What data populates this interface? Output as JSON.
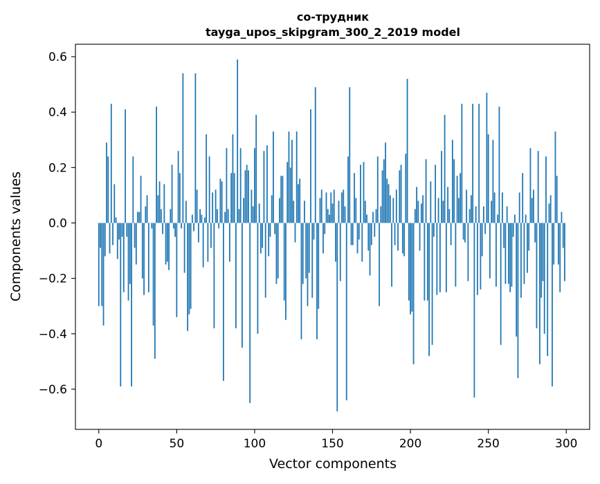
{
  "chart_data": {
    "type": "bar",
    "title": "со-трудник",
    "subtitle": "tayga_upos_skipgram_300_2_2019 model",
    "xlabel": "Vector components",
    "ylabel": "Components values",
    "xlim": [
      -15,
      315
    ],
    "ylim": [
      -0.745,
      0.645
    ],
    "xticks": [
      0,
      50,
      100,
      150,
      200,
      250,
      300
    ],
    "yticks": [
      -0.6,
      -0.4,
      -0.2,
      0.0,
      0.2,
      0.4,
      0.6
    ],
    "ytick_labels": [
      "−0.6",
      "−0.4",
      "−0.2",
      "0.0",
      "0.2",
      "0.4",
      "0.6"
    ],
    "bar_color": "#1f77b4",
    "grid": false,
    "legend": "none",
    "values": [
      -0.3,
      -0.09,
      -0.3,
      -0.37,
      -0.12,
      0.29,
      0.24,
      -0.11,
      0.43,
      -0.08,
      0.14,
      0.02,
      -0.13,
      -0.06,
      -0.59,
      -0.05,
      -0.25,
      0.41,
      -0.05,
      -0.28,
      -0.22,
      -0.59,
      0.24,
      -0.09,
      -0.15,
      0.04,
      0.04,
      0.17,
      -0.2,
      -0.26,
      0.06,
      0.1,
      -0.25,
      0.0,
      -0.02,
      -0.37,
      -0.49,
      0.42,
      0.1,
      0.15,
      0.05,
      -0.04,
      0.14,
      -0.15,
      -0.14,
      -0.17,
      0.05,
      0.21,
      -0.02,
      -0.05,
      -0.34,
      0.26,
      0.18,
      -0.02,
      0.54,
      -0.18,
      0.08,
      -0.39,
      -0.33,
      -0.31,
      0.03,
      -0.03,
      0.54,
      0.12,
      -0.07,
      0.05,
      0.03,
      -0.16,
      0.02,
      0.32,
      -0.14,
      0.24,
      -0.09,
      0.11,
      -0.38,
      0.12,
      0.05,
      -0.02,
      0.16,
      0.15,
      -0.57,
      0.04,
      0.27,
      0.05,
      -0.14,
      0.18,
      0.32,
      0.18,
      -0.38,
      0.59,
      0.05,
      0.27,
      -0.45,
      0.09,
      0.19,
      0.21,
      0.19,
      -0.65,
      0.12,
      0.06,
      0.27,
      0.39,
      -0.4,
      0.07,
      -0.11,
      -0.09,
      0.26,
      -0.27,
      0.28,
      -0.12,
      -0.05,
      0.1,
      0.33,
      -0.04,
      -0.22,
      -0.2,
      0.09,
      0.17,
      0.17,
      -0.28,
      -0.35,
      0.22,
      0.33,
      0.2,
      0.3,
      0.08,
      -0.07,
      0.33,
      0.14,
      0.16,
      -0.42,
      -0.22,
      0.08,
      -0.2,
      -0.3,
      -0.18,
      0.41,
      -0.27,
      -0.06,
      0.49,
      -0.42,
      -0.31,
      0.09,
      0.12,
      -0.11,
      -0.04,
      0.11,
      0.05,
      0.03,
      0.11,
      0.07,
      0.12,
      -0.14,
      -0.68,
      0.08,
      -0.21,
      0.11,
      0.12,
      0.06,
      -0.64,
      0.24,
      0.49,
      -0.08,
      -0.08,
      0.18,
      0.09,
      -0.11,
      -0.06,
      0.21,
      -0.14,
      0.22,
      0.08,
      0.03,
      -0.1,
      -0.19,
      -0.08,
      0.04,
      -0.05,
      0.05,
      0.24,
      -0.3,
      0.06,
      0.19,
      0.23,
      0.29,
      0.16,
      0.14,
      0.1,
      -0.23,
      0.09,
      -0.08,
      0.12,
      -0.1,
      0.19,
      0.21,
      -0.11,
      -0.12,
      0.25,
      0.52,
      -0.28,
      -0.33,
      -0.32,
      -0.51,
      0.05,
      0.13,
      0.08,
      -0.1,
      0.07,
      0.1,
      -0.28,
      0.23,
      -0.28,
      -0.48,
      0.15,
      -0.44,
      -0.05,
      0.21,
      -0.26,
      0.09,
      -0.25,
      0.26,
      0.08,
      0.39,
      -0.25,
      0.13,
      0.05,
      -0.08,
      0.3,
      0.23,
      -0.23,
      0.17,
      0.09,
      0.18,
      0.43,
      -0.06,
      -0.07,
      0.12,
      -0.21,
      0.05,
      0.1,
      0.43,
      -0.63,
      0.06,
      -0.26,
      0.43,
      -0.24,
      -0.12,
      0.06,
      -0.04,
      0.47,
      0.32,
      -0.2,
      0.08,
      0.3,
      0.11,
      -0.23,
      0.03,
      0.42,
      -0.44,
      0.11,
      -0.09,
      -0.22,
      0.06,
      -0.22,
      -0.25,
      -0.23,
      -0.05,
      0.03,
      -0.41,
      -0.56,
      0.11,
      -0.27,
      0.18,
      -0.22,
      0.03,
      -0.18,
      -0.1,
      0.27,
      0.09,
      0.12,
      -0.07,
      -0.38,
      0.26,
      -0.51,
      -0.27,
      -0.21,
      -0.4,
      0.24,
      -0.48,
      0.07,
      0.1,
      -0.59,
      -0.15,
      0.33,
      0.17,
      -0.15,
      -0.25,
      0.04,
      -0.09,
      -0.21
    ]
  }
}
